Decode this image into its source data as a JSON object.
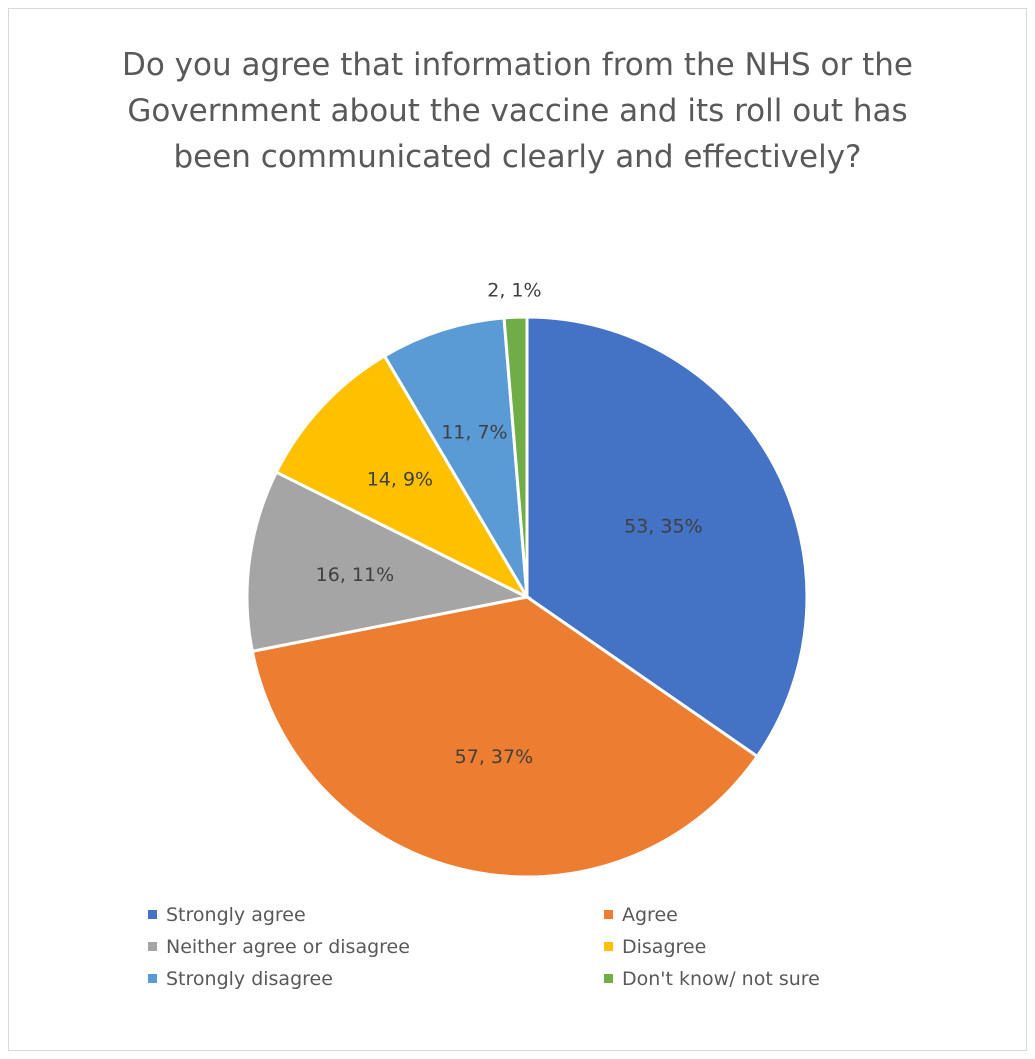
{
  "chart_data": {
    "type": "pie",
    "title": "Do you agree that information from the NHS or the Government about the vaccine and its roll out has been communicated clearly and effectively?",
    "slices": [
      {
        "label": "Strongly agree",
        "value": 53,
        "percent": "35%",
        "data_label": "53, 35%",
        "color": "#4472C4"
      },
      {
        "label": "Agree",
        "value": 57,
        "percent": "37%",
        "data_label": "57, 37%",
        "color": "#ED7D31"
      },
      {
        "label": "Neither agree or disagree",
        "value": 16,
        "percent": "11%",
        "data_label": "16, 11%",
        "color": "#A5A5A5"
      },
      {
        "label": "Disagree",
        "value": 14,
        "percent": "9%",
        "data_label": "14, 9%",
        "color": "#FFC000"
      },
      {
        "label": "Strongly disagree",
        "value": 11,
        "percent": "7%",
        "data_label": "11, 7%",
        "color": "#5B9BD5"
      },
      {
        "label": "Don't know/ not sure",
        "value": 2,
        "percent": "1%",
        "data_label": "2, 1%",
        "color": "#70AD47"
      }
    ],
    "legend_placement": "bottom",
    "start_angle": "12 o'clock, clockwise"
  }
}
